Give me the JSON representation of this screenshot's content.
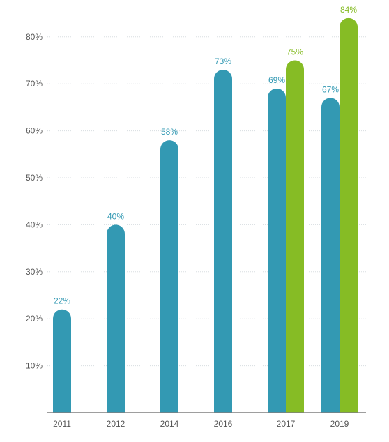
{
  "chart_data": {
    "type": "bar",
    "categories": [
      "2011",
      "2012",
      "2014",
      "2016",
      "2017",
      "2019"
    ],
    "series": [
      {
        "values": [
          22,
          40,
          58,
          73,
          69,
          67
        ],
        "labels": [
          "22%",
          "40%",
          "58%",
          "73%",
          "69%",
          "67%"
        ],
        "color": "#3399b3"
      },
      {
        "values": [
          null,
          null,
          null,
          null,
          75,
          84
        ],
        "labels": [
          null,
          null,
          null,
          null,
          "75%",
          "84%"
        ],
        "color": "#86bc25"
      }
    ],
    "y_ticks": [
      {
        "value": 10,
        "label": "10%"
      },
      {
        "value": 20,
        "label": "20%"
      },
      {
        "value": 30,
        "label": "30%"
      },
      {
        "value": 40,
        "label": "40%"
      },
      {
        "value": 50,
        "label": "50%"
      },
      {
        "value": 60,
        "label": "60%"
      },
      {
        "value": 70,
        "label": "70%"
      },
      {
        "value": 80,
        "label": "80%"
      }
    ],
    "ylim": [
      0,
      85
    ],
    "grid": true,
    "title": "",
    "xlabel": "",
    "ylabel": ""
  }
}
